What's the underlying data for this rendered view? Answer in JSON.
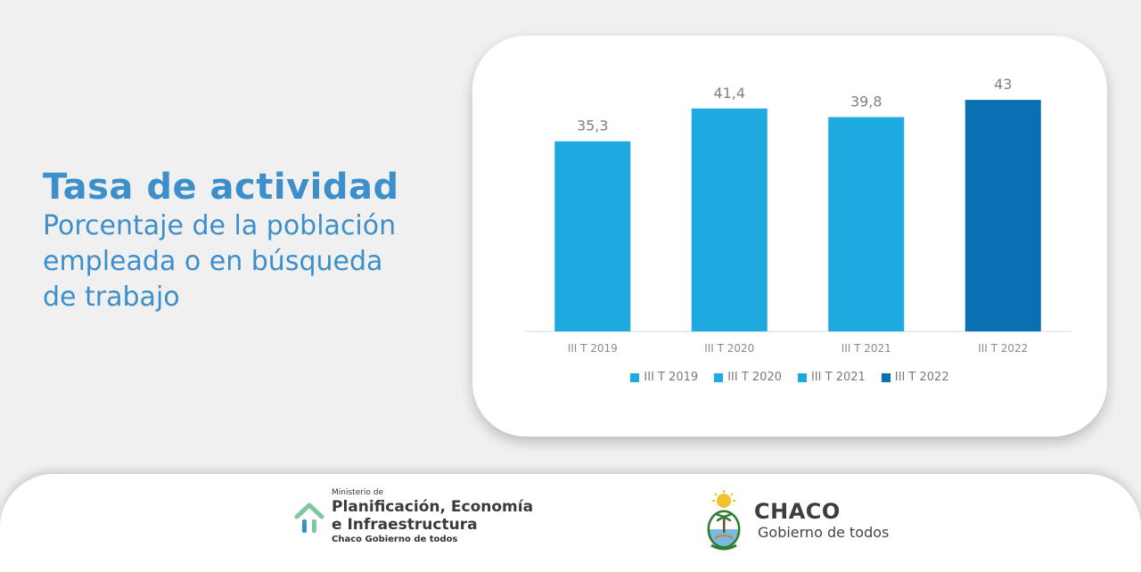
{
  "headline": {
    "title": "Tasa de actividad",
    "subtitle_lines": [
      "Porcentaje de la población",
      "empleada o en búsqueda",
      "de trabajo"
    ]
  },
  "chart_data": {
    "type": "bar",
    "categories": [
      "III T 2019",
      "III T 2020",
      "III T 2021",
      "III T 2022"
    ],
    "values": [
      35.3,
      41.4,
      39.8,
      43
    ],
    "value_labels": [
      "35,3",
      "41,4",
      "39,8",
      "43"
    ],
    "colors": [
      "#1fa9e1",
      "#1fa9e1",
      "#1fa9e1",
      "#0b6fb4"
    ],
    "legend": [
      "III T 2019",
      "III T 2020",
      "III T 2021",
      "III T 2022"
    ],
    "ylim": [
      0,
      45
    ],
    "grid": false,
    "legend_position": "bottom"
  },
  "footer": {
    "ministry": {
      "small": "Ministerio de",
      "line1": "Planificación, Economía",
      "line2": "e Infraestructura",
      "sub": "Chaco Gobierno de todos"
    },
    "chaco": {
      "title": "CHACO",
      "subtitle": "Gobierno de todos"
    }
  },
  "colors": {
    "accent": "#3d8fcb",
    "bar_light": "#1fa9e1",
    "bar_dark": "#0b6fb4",
    "background": "#f0f0f0"
  }
}
